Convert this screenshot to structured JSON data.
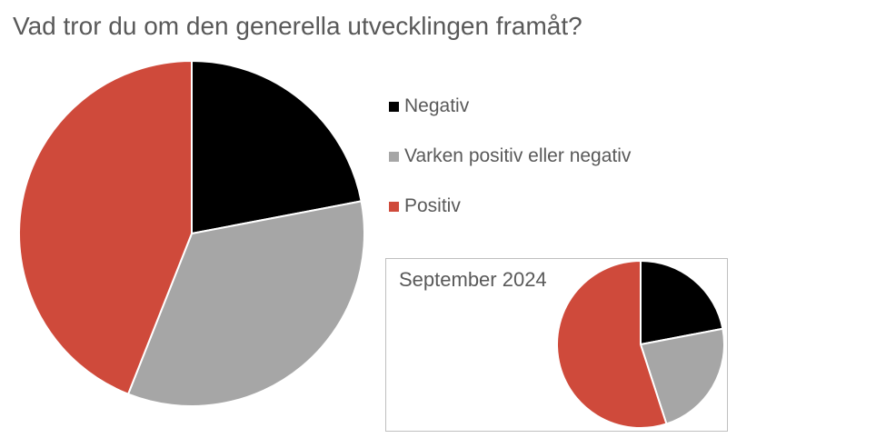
{
  "title": "Vad tror du om den generella utvecklingen framåt?",
  "legend": {
    "items": [
      {
        "label": "Negativ",
        "color": "#000000"
      },
      {
        "label": "Varken positiv eller negativ",
        "color": "#A6A6A6"
      },
      {
        "label": "Positiv",
        "color": "#CF4A3B"
      }
    ]
  },
  "inset": {
    "title": "September 2024"
  },
  "colors": {
    "background": "#FFFFFF",
    "text": "#595959",
    "inset_border": "#BFBFBF",
    "slice_separator": "#FFFFFF"
  },
  "chart_data": [
    {
      "type": "pie",
      "title": "Vad tror du om den generella utvecklingen framåt?",
      "categories": [
        "Negativ",
        "Varken positiv eller negativ",
        "Positiv"
      ],
      "values": [
        22,
        34,
        44
      ],
      "colors": [
        "#000000",
        "#A6A6A6",
        "#CF4A3B"
      ],
      "start_angle_deg": 0,
      "direction": "clockwise",
      "legend_position": "right",
      "data_labels": false
    },
    {
      "type": "pie",
      "title": "September 2024",
      "categories": [
        "Negativ",
        "Varken positiv eller negativ",
        "Positiv"
      ],
      "values": [
        22,
        23,
        55
      ],
      "colors": [
        "#000000",
        "#A6A6A6",
        "#CF4A3B"
      ],
      "start_angle_deg": 0,
      "direction": "clockwise",
      "legend_position": "none",
      "data_labels": false
    }
  ]
}
